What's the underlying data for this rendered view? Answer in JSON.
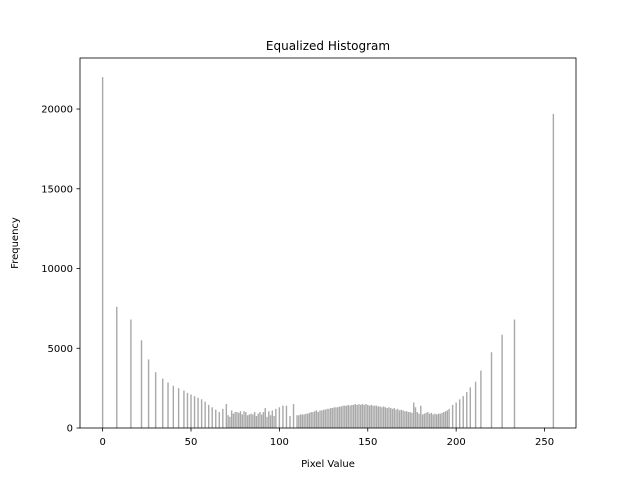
{
  "chart_data": {
    "type": "bar",
    "title": "Equalized Histogram",
    "xlabel": "Pixel Value",
    "ylabel": "Frequency",
    "xlim": [
      -12.8,
      267.8
    ],
    "ylim": [
      0,
      23200
    ],
    "xticks": [
      0,
      50,
      100,
      150,
      200,
      250
    ],
    "yticks": [
      0,
      5000,
      10000,
      15000,
      20000
    ],
    "grid": false,
    "bar_color": "#a9a9a9",
    "frame_color": "#000000",
    "bar_width": 0.8,
    "series": [
      {
        "x": [
          0,
          8,
          16,
          22,
          26,
          30,
          34,
          37,
          40,
          43,
          46,
          48,
          50,
          52,
          54,
          56,
          58,
          60,
          62,
          64,
          66,
          68,
          70,
          71,
          72,
          73,
          74,
          75,
          76,
          77,
          78,
          79,
          80,
          81,
          82,
          83,
          84,
          85,
          86,
          87,
          88,
          89,
          90,
          91,
          92,
          93,
          94,
          95,
          96,
          97,
          98,
          100,
          102,
          104,
          106,
          108,
          110,
          111,
          112,
          113,
          114,
          115,
          116,
          117,
          118,
          119,
          120,
          121,
          122,
          123,
          124,
          125,
          126,
          127,
          128,
          129,
          130,
          131,
          132,
          133,
          134,
          135,
          136,
          137,
          138,
          139,
          140,
          141,
          142,
          143,
          144,
          145,
          146,
          147,
          148,
          149,
          150,
          151,
          152,
          153,
          154,
          155,
          156,
          157,
          158,
          159,
          160,
          161,
          162,
          163,
          164,
          165,
          166,
          167,
          168,
          169,
          170,
          171,
          172,
          173,
          174,
          175,
          176,
          177,
          178,
          179,
          180,
          181,
          182,
          183,
          184,
          185,
          186,
          187,
          188,
          189,
          190,
          191,
          192,
          193,
          194,
          195,
          196,
          198,
          200,
          202,
          204,
          206,
          208,
          211,
          214,
          220,
          226,
          233,
          255
        ],
        "values": [
          22000,
          7600,
          6800,
          5500,
          4300,
          3500,
          3100,
          2850,
          2650,
          2500,
          2350,
          2200,
          2100,
          2000,
          1900,
          1800,
          1650,
          1450,
          1300,
          1150,
          1000,
          1200,
          1500,
          800,
          700,
          1100,
          900,
          1000,
          1000,
          950,
          1050,
          850,
          1050,
          1000,
          800,
          850,
          900,
          850,
          1000,
          750,
          900,
          1000,
          850,
          1000,
          1250,
          700,
          1050,
          800,
          1100,
          750,
          1200,
          1300,
          1400,
          1400,
          750,
          1500,
          800,
          800,
          850,
          850,
          850,
          900,
          900,
          950,
          1000,
          1000,
          1050,
          1100,
          1000,
          1100,
          1100,
          1150,
          1150,
          1200,
          1200,
          1250,
          1250,
          1300,
          1300,
          1300,
          1350,
          1350,
          1400,
          1400,
          1400,
          1450,
          1400,
          1450,
          1450,
          1500,
          1450,
          1500,
          1450,
          1500,
          1450,
          1500,
          1450,
          1400,
          1450,
          1400,
          1400,
          1400,
          1350,
          1350,
          1300,
          1350,
          1300,
          1250,
          1300,
          1250,
          1200,
          1250,
          1150,
          1200,
          1100,
          1150,
          1100,
          1050,
          1050,
          1000,
          1000,
          950,
          1600,
          1300,
          1000,
          900,
          1400,
          850,
          900,
          950,
          1000,
          900,
          950,
          850,
          900,
          850,
          900,
          900,
          950,
          1000,
          1050,
          1100,
          1200,
          1450,
          1600,
          1800,
          2000,
          2250,
          2550,
          2900,
          3600,
          4750,
          5850,
          6800,
          19700
        ]
      }
    ]
  }
}
